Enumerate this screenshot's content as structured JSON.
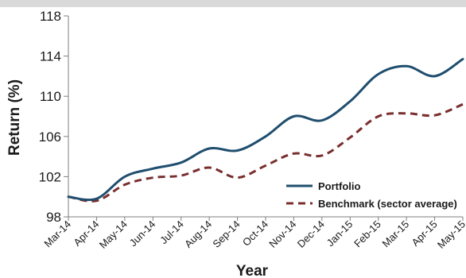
{
  "chart_data": {
    "type": "line",
    "xlabel": "Year",
    "ylabel": "Return (%)",
    "categories": [
      "Mar-14",
      "Apr-14",
      "May-14",
      "Jun-14",
      "Jul-14",
      "Aug-14",
      "Sep-14",
      "Oct-14",
      "Nov-14",
      "Dec-14",
      "Jan-15",
      "Feb-15",
      "Mar-15",
      "Apr-15",
      "May-15"
    ],
    "ylim": [
      98,
      118
    ],
    "yticks": [
      98,
      102,
      106,
      110,
      114,
      118
    ],
    "grid": false,
    "legend_position": "bottom-right",
    "series": [
      {
        "name": "Portfolio",
        "color": "#1f4e6e",
        "dash": "solid",
        "values": [
          100.0,
          99.8,
          102.0,
          102.8,
          103.4,
          104.8,
          104.6,
          106.0,
          108.0,
          107.6,
          109.5,
          112.2,
          113.0,
          112.0,
          113.7
        ]
      },
      {
        "name": "Benchmark (sector average)",
        "color": "#7a2e2e",
        "dash": "dashed",
        "values": [
          100.0,
          99.6,
          101.2,
          101.9,
          102.1,
          102.9,
          101.9,
          103.1,
          104.3,
          104.1,
          105.9,
          108.0,
          108.3,
          108.1,
          109.2
        ]
      }
    ]
  }
}
